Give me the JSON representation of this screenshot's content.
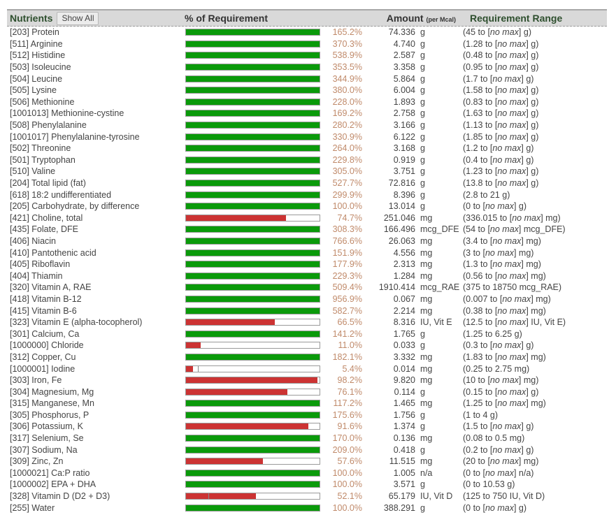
{
  "header": {
    "nutrients_label": "Nutrients",
    "show_all_button": "Show All",
    "pct_label": "% of Requirement",
    "amount_label": "Amount",
    "amount_sub": "(per Mcal)",
    "range_label": "Requirement Range"
  },
  "colors": {
    "ok": "#0a9a0a",
    "low": "#cc3333",
    "pct_text": "#c08a6a",
    "header_bg": "#d9d9d9"
  },
  "rows": [
    {
      "name": "[203] Protein",
      "pct": "165.2%",
      "pct_val": 165.2,
      "amount": "74.336",
      "unit": "g",
      "min": "45",
      "max": null,
      "runit": "g",
      "status": "ok"
    },
    {
      "name": "[511] Arginine",
      "pct": "370.3%",
      "pct_val": 370.3,
      "amount": "4.740",
      "unit": "g",
      "min": "1.28",
      "max": null,
      "runit": "g",
      "status": "ok"
    },
    {
      "name": "[512] Histidine",
      "pct": "538.9%",
      "pct_val": 538.9,
      "amount": "2.587",
      "unit": "g",
      "min": "0.48",
      "max": null,
      "runit": "g",
      "status": "ok"
    },
    {
      "name": "[503] Isoleucine",
      "pct": "353.5%",
      "pct_val": 353.5,
      "amount": "3.358",
      "unit": "g",
      "min": "0.95",
      "max": null,
      "runit": "g",
      "status": "ok"
    },
    {
      "name": "[504] Leucine",
      "pct": "344.9%",
      "pct_val": 344.9,
      "amount": "5.864",
      "unit": "g",
      "min": "1.7",
      "max": null,
      "runit": "g",
      "status": "ok"
    },
    {
      "name": "[505] Lysine",
      "pct": "380.0%",
      "pct_val": 380.0,
      "amount": "6.004",
      "unit": "g",
      "min": "1.58",
      "max": null,
      "runit": "g",
      "status": "ok"
    },
    {
      "name": "[506] Methionine",
      "pct": "228.0%",
      "pct_val": 228.0,
      "amount": "1.893",
      "unit": "g",
      "min": "0.83",
      "max": null,
      "runit": "g",
      "status": "ok"
    },
    {
      "name": "[1001013] Methionine-cystine",
      "pct": "169.2%",
      "pct_val": 169.2,
      "amount": "2.758",
      "unit": "g",
      "min": "1.63",
      "max": null,
      "runit": "g",
      "status": "ok"
    },
    {
      "name": "[508] Phenylalanine",
      "pct": "280.2%",
      "pct_val": 280.2,
      "amount": "3.166",
      "unit": "g",
      "min": "1.13",
      "max": null,
      "runit": "g",
      "status": "ok"
    },
    {
      "name": "[1001017] Phenylalanine-tyrosine",
      "pct": "330.9%",
      "pct_val": 330.9,
      "amount": "6.122",
      "unit": "g",
      "min": "1.85",
      "max": null,
      "runit": "g",
      "status": "ok"
    },
    {
      "name": "[502] Threonine",
      "pct": "264.0%",
      "pct_val": 264.0,
      "amount": "3.168",
      "unit": "g",
      "min": "1.2",
      "max": null,
      "runit": "g",
      "status": "ok"
    },
    {
      "name": "[501] Tryptophan",
      "pct": "229.8%",
      "pct_val": 229.8,
      "amount": "0.919",
      "unit": "g",
      "min": "0.4",
      "max": null,
      "runit": "g",
      "status": "ok"
    },
    {
      "name": "[510] Valine",
      "pct": "305.0%",
      "pct_val": 305.0,
      "amount": "3.751",
      "unit": "g",
      "min": "1.23",
      "max": null,
      "runit": "g",
      "status": "ok"
    },
    {
      "name": "[204] Total lipid (fat)",
      "pct": "527.7%",
      "pct_val": 527.7,
      "amount": "72.816",
      "unit": "g",
      "min": "13.8",
      "max": null,
      "runit": "g",
      "status": "ok"
    },
    {
      "name": "[618] 18:2 undifferentiated",
      "pct": "299.9%",
      "pct_val": 299.9,
      "amount": "8.396",
      "unit": "g",
      "min": "2.8",
      "max": "21",
      "runit": "g",
      "status": "ok"
    },
    {
      "name": "[205] Carbohydrate, by difference",
      "pct": "100.0%",
      "pct_val": 100.0,
      "amount": "13.014",
      "unit": "g",
      "min": "0",
      "max": null,
      "runit": "g",
      "status": "ok"
    },
    {
      "name": "[421] Choline, total",
      "pct": "74.7%",
      "pct_val": 74.7,
      "amount": "251.046",
      "unit": "mg",
      "min": "336.015",
      "max": null,
      "runit": "mg",
      "status": "low"
    },
    {
      "name": "[435] Folate, DFE",
      "pct": "308.3%",
      "pct_val": 308.3,
      "amount": "166.496",
      "unit": "mcg_DFE",
      "min": "54",
      "max": null,
      "runit": "mcg_DFE",
      "status": "ok"
    },
    {
      "name": "[406] Niacin",
      "pct": "766.6%",
      "pct_val": 766.6,
      "amount": "26.063",
      "unit": "mg",
      "min": "3.4",
      "max": null,
      "runit": "mg",
      "status": "ok"
    },
    {
      "name": "[410] Pantothenic acid",
      "pct": "151.9%",
      "pct_val": 151.9,
      "amount": "4.556",
      "unit": "mg",
      "min": "3",
      "max": null,
      "runit": "mg",
      "status": "ok"
    },
    {
      "name": "[405] Riboflavin",
      "pct": "177.9%",
      "pct_val": 177.9,
      "amount": "2.313",
      "unit": "mg",
      "min": "1.3",
      "max": null,
      "runit": "mg",
      "status": "ok"
    },
    {
      "name": "[404] Thiamin",
      "pct": "229.3%",
      "pct_val": 229.3,
      "amount": "1.284",
      "unit": "mg",
      "min": "0.56",
      "max": null,
      "runit": "mg",
      "status": "ok"
    },
    {
      "name": "[320] Vitamin A, RAE",
      "pct": "509.4%",
      "pct_val": 509.4,
      "amount": "1910.414",
      "unit": "mcg_RAE",
      "min": "375",
      "max": "18750",
      "runit": "mcg_RAE",
      "status": "ok"
    },
    {
      "name": "[418] Vitamin B-12",
      "pct": "956.9%",
      "pct_val": 956.9,
      "amount": "0.067",
      "unit": "mg",
      "min": "0.007",
      "max": null,
      "runit": "mg",
      "status": "ok"
    },
    {
      "name": "[415] Vitamin B-6",
      "pct": "582.7%",
      "pct_val": 582.7,
      "amount": "2.214",
      "unit": "mg",
      "min": "0.38",
      "max": null,
      "runit": "mg",
      "status": "ok"
    },
    {
      "name": "[323] Vitamin E (alpha-tocopherol)",
      "pct": "66.5%",
      "pct_val": 66.5,
      "amount": "8.316",
      "unit": "IU, Vit E",
      "min": "12.5",
      "max": null,
      "runit": "IU, Vit E",
      "status": "low"
    },
    {
      "name": "[301] Calcium, Ca",
      "pct": "141.2%",
      "pct_val": 141.2,
      "amount": "1.765",
      "unit": "g",
      "min": "1.25",
      "max": "6.25",
      "runit": "g",
      "status": "ok"
    },
    {
      "name": "[1000000] Chloride",
      "pct": "11.0%",
      "pct_val": 11.0,
      "amount": "0.033",
      "unit": "g",
      "min": "0.3",
      "max": null,
      "runit": "g",
      "status": "low"
    },
    {
      "name": "[312] Copper, Cu",
      "pct": "182.1%",
      "pct_val": 182.1,
      "amount": "3.332",
      "unit": "mg",
      "min": "1.83",
      "max": null,
      "runit": "mg",
      "status": "ok"
    },
    {
      "name": "[1000001] Iodine",
      "pct": "5.4%",
      "pct_val": 5.4,
      "amount": "0.014",
      "unit": "mg",
      "min": "0.25",
      "max": "2.75",
      "runit": "mg",
      "status": "low",
      "marker": 9
    },
    {
      "name": "[303] Iron, Fe",
      "pct": "98.2%",
      "pct_val": 98.2,
      "amount": "9.820",
      "unit": "mg",
      "min": "10",
      "max": null,
      "runit": "mg",
      "status": "low"
    },
    {
      "name": "[304] Magnesium, Mg",
      "pct": "76.1%",
      "pct_val": 76.1,
      "amount": "0.114",
      "unit": "g",
      "min": "0.15",
      "max": null,
      "runit": "g",
      "status": "low"
    },
    {
      "name": "[315] Manganese, Mn",
      "pct": "117.2%",
      "pct_val": 117.2,
      "amount": "1.465",
      "unit": "mg",
      "min": "1.25",
      "max": null,
      "runit": "mg",
      "status": "ok"
    },
    {
      "name": "[305] Phosphorus, P",
      "pct": "175.6%",
      "pct_val": 175.6,
      "amount": "1.756",
      "unit": "g",
      "min": "1",
      "max": "4",
      "runit": "g",
      "status": "ok"
    },
    {
      "name": "[306] Potassium, K",
      "pct": "91.6%",
      "pct_val": 91.6,
      "amount": "1.374",
      "unit": "g",
      "min": "1.5",
      "max": null,
      "runit": "g",
      "status": "low"
    },
    {
      "name": "[317] Selenium, Se",
      "pct": "170.0%",
      "pct_val": 170.0,
      "amount": "0.136",
      "unit": "mg",
      "min": "0.08",
      "max": "0.5",
      "runit": "mg",
      "status": "ok"
    },
    {
      "name": "[307] Sodium, Na",
      "pct": "209.0%",
      "pct_val": 209.0,
      "amount": "0.418",
      "unit": "g",
      "min": "0.2",
      "max": null,
      "runit": "g",
      "status": "ok"
    },
    {
      "name": "[309] Zinc, Zn",
      "pct": "57.6%",
      "pct_val": 57.6,
      "amount": "11.515",
      "unit": "mg",
      "min": "20",
      "max": null,
      "runit": "mg",
      "status": "low"
    },
    {
      "name": "[1000021] Ca:P ratio",
      "pct": "100.0%",
      "pct_val": 100.0,
      "amount": "1.005",
      "unit": "n/a",
      "min": "0",
      "max": null,
      "runit": "n/a",
      "status": "ok"
    },
    {
      "name": "[1000002] EPA + DHA",
      "pct": "100.0%",
      "pct_val": 100.0,
      "amount": "3.571",
      "unit": "g",
      "min": "0",
      "max": "10.53",
      "runit": "g",
      "status": "ok"
    },
    {
      "name": "[328] Vitamin D (D2 + D3)",
      "pct": "52.1%",
      "pct_val": 52.1,
      "amount": "65.179",
      "unit": "IU, Vit D",
      "min": "125",
      "max": "750",
      "runit": "IU, Vit D",
      "status": "low",
      "marker": 17
    },
    {
      "name": "[255] Water",
      "pct": "100.0%",
      "pct_val": 100.0,
      "amount": "388.291",
      "unit": "g",
      "min": "0",
      "max": null,
      "runit": "g",
      "status": "ok"
    }
  ],
  "no_max_text": "no max"
}
